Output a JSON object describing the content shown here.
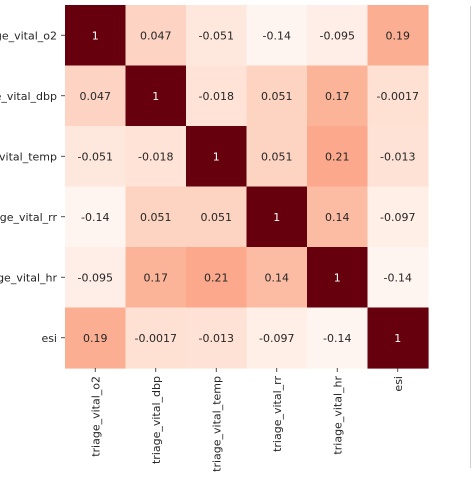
{
  "chart_data": {
    "type": "heatmap",
    "rows": [
      "triage_vital_o2",
      "triage_vital_dbp",
      "triage_vital_temp",
      "triage_vital_rr",
      "triage_vital_hr",
      "esi"
    ],
    "columns": [
      "triage_vital_o2",
      "triage_vital_dbp",
      "triage_vital_temp",
      "triage_vital_rr",
      "triage_vital_hr",
      "esi"
    ],
    "values": [
      [
        1,
        0.047,
        -0.051,
        -0.14,
        -0.095,
        0.19
      ],
      [
        0.047,
        1,
        -0.018,
        0.051,
        0.17,
        -0.0017
      ],
      [
        -0.051,
        -0.018,
        1,
        0.051,
        0.21,
        -0.013
      ],
      [
        -0.14,
        0.051,
        0.051,
        1,
        0.14,
        -0.097
      ],
      [
        -0.095,
        0.17,
        0.21,
        0.14,
        1,
        -0.14
      ],
      [
        0.19,
        -0.0017,
        -0.013,
        -0.097,
        -0.14,
        1
      ]
    ],
    "labels": [
      [
        "1",
        "0.047",
        "-0.051",
        "-0.14",
        "-0.095",
        "0.19"
      ],
      [
        "0.047",
        "1",
        "-0.018",
        "0.051",
        "0.17",
        "-0.0017"
      ],
      [
        "-0.051",
        "-0.018",
        "1",
        "0.051",
        "0.21",
        "-0.013"
      ],
      [
        "-0.14",
        "0.051",
        "0.051",
        "1",
        "0.14",
        "-0.097"
      ],
      [
        "-0.095",
        "0.17",
        "0.21",
        "0.14",
        "1",
        "-0.14"
      ],
      [
        "0.19",
        "-0.0017",
        "-0.013",
        "-0.097",
        "-0.14",
        "1"
      ]
    ],
    "colormap": "Reds",
    "vmin": -0.14,
    "vmax": 1,
    "annotated": true,
    "title": "",
    "xlabel": "",
    "ylabel": ""
  }
}
